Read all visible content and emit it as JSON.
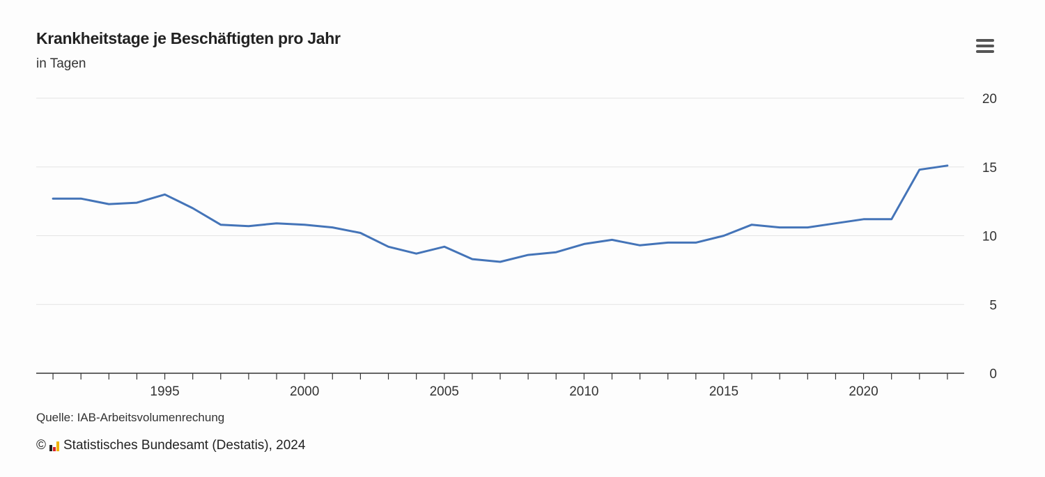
{
  "header": {
    "title": "Krankheitstage je Beschäftigten pro Jahr",
    "subtitle": "in Tagen",
    "menu_icon": "hamburger-menu-icon"
  },
  "footer": {
    "source": "Quelle: IAB-Arbeitsvolumenrechung",
    "copyright_symbol": "©",
    "logo_icon": "destatis-logo-icon",
    "credit": "Statistisches Bundesamt (Destatis), 2024"
  },
  "colors": {
    "series": "#4474b8",
    "grid": "#e3e3e3",
    "axis": "#333333",
    "logo": [
      "#222222",
      "#d9262b",
      "#f0b400"
    ]
  },
  "chart_data": {
    "type": "line",
    "title": "Krankheitstage je Beschäftigten pro Jahr",
    "subtitle": "in Tagen",
    "xlabel": "",
    "ylabel": "",
    "xlim": [
      1991,
      2023
    ],
    "ylim": [
      0,
      20
    ],
    "y_ticks": [
      0,
      5,
      10,
      15,
      20
    ],
    "x_tick_labels": [
      1995,
      2000,
      2005,
      2010,
      2015,
      2020
    ],
    "grid": true,
    "legend": "none",
    "series": [
      {
        "name": "Krankheitstage je Beschäftigten",
        "x": [
          1991,
          1992,
          1993,
          1994,
          1995,
          1996,
          1997,
          1998,
          1999,
          2000,
          2001,
          2002,
          2003,
          2004,
          2005,
          2006,
          2007,
          2008,
          2009,
          2010,
          2011,
          2012,
          2013,
          2014,
          2015,
          2016,
          2017,
          2018,
          2019,
          2020,
          2021,
          2022,
          2023
        ],
        "values": [
          12.7,
          12.7,
          12.3,
          12.4,
          13.0,
          12.0,
          10.8,
          10.7,
          10.9,
          10.8,
          10.6,
          10.2,
          9.2,
          8.7,
          9.2,
          8.3,
          8.1,
          8.6,
          8.8,
          9.4,
          9.7,
          9.3,
          9.5,
          9.5,
          10.0,
          10.8,
          10.6,
          10.6,
          10.9,
          11.2,
          11.2,
          14.8,
          15.1
        ]
      }
    ]
  }
}
